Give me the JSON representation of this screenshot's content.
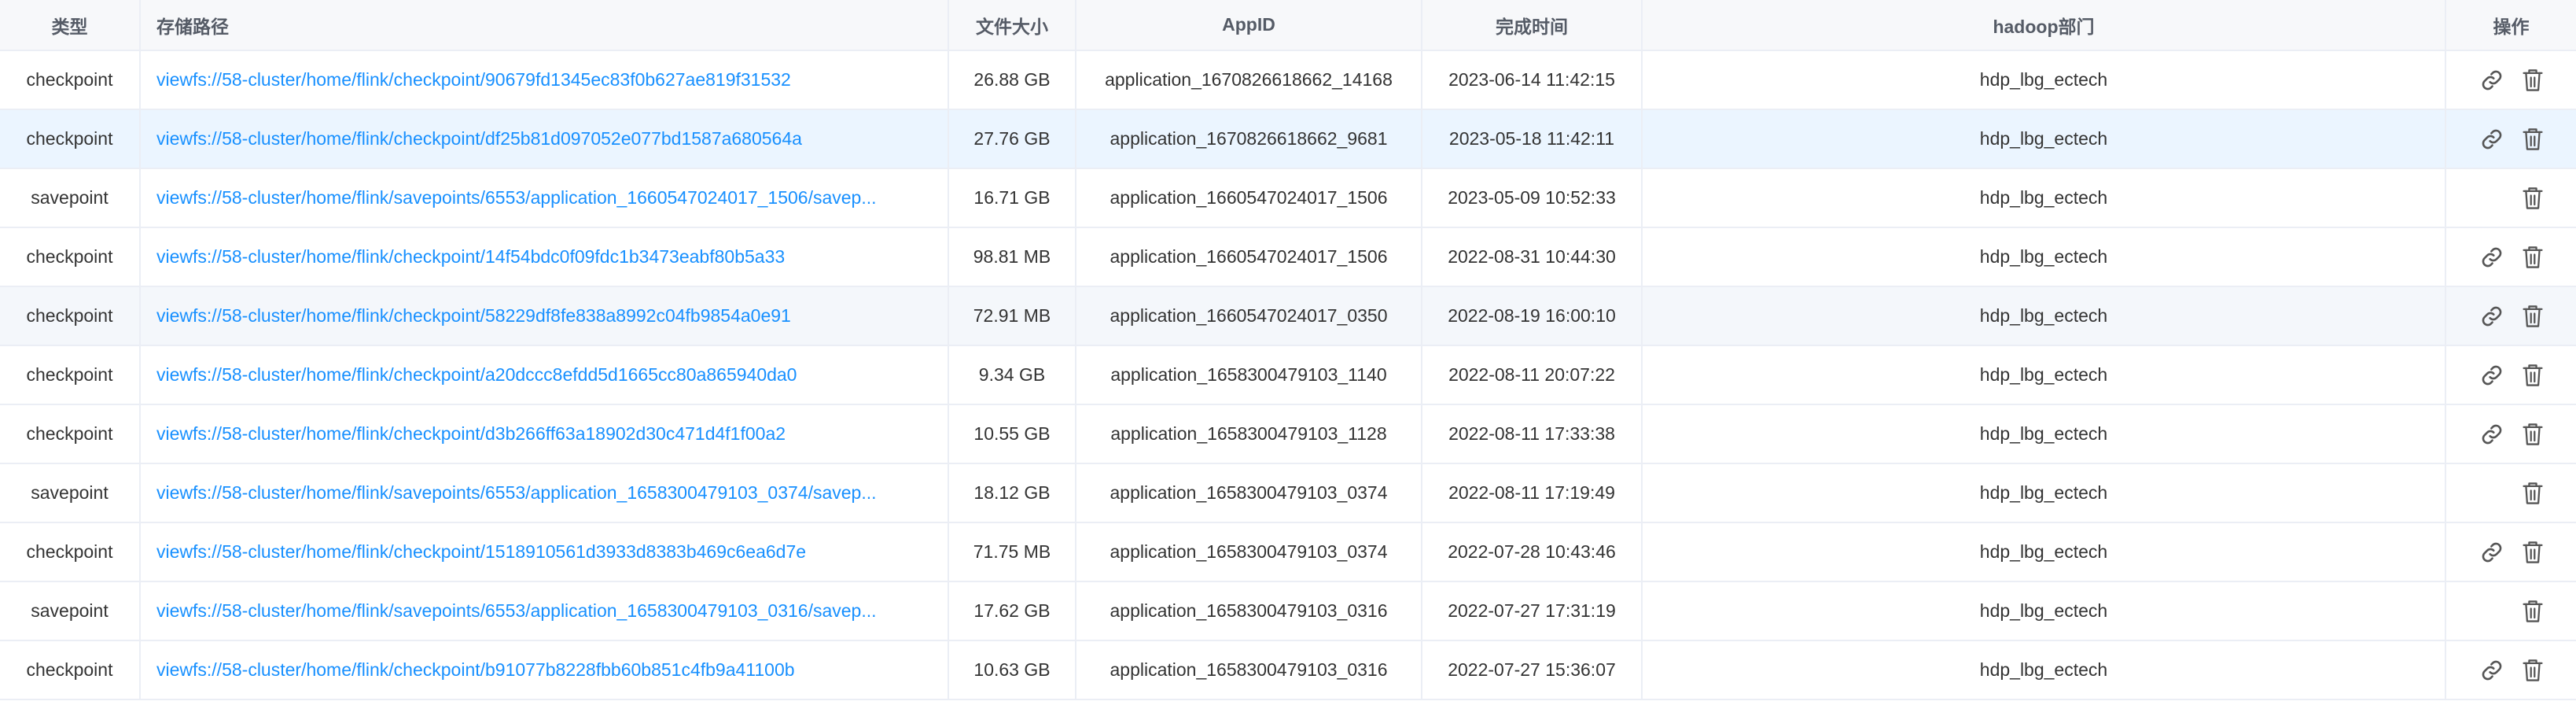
{
  "columns": {
    "type": "类型",
    "path": "存储路径",
    "size": "文件大小",
    "appid": "AppID",
    "time": "完成时间",
    "dept": "hadoop部门",
    "ops": "操作"
  },
  "icons": {
    "link": "link-icon",
    "delete": "trash-icon"
  },
  "colors": {
    "link_text": "#1890ff",
    "row_hover": "#ebf5ff",
    "row_alt": "#f4f7fb",
    "header_bg": "#f7f8fa"
  },
  "rows": [
    {
      "type": "checkpoint",
      "path": "viewfs://58-cluster/home/flink/checkpoint/90679fd1345ec83f0b627ae819f31532",
      "size": "26.88 GB",
      "appid": "application_1670826618662_14168",
      "time": "2023-06-14 11:42:15",
      "dept": "hdp_lbg_ectech",
      "has_link": true
    },
    {
      "type": "checkpoint",
      "path": "viewfs://58-cluster/home/flink/checkpoint/df25b81d097052e077bd1587a680564a",
      "size": "27.76 GB",
      "appid": "application_1670826618662_9681",
      "time": "2023-05-18 11:42:11",
      "dept": "hdp_lbg_ectech",
      "has_link": true
    },
    {
      "type": "savepoint",
      "path": "viewfs://58-cluster/home/flink/savepoints/6553/application_1660547024017_1506/savep...",
      "size": "16.71 GB",
      "appid": "application_1660547024017_1506",
      "time": "2023-05-09 10:52:33",
      "dept": "hdp_lbg_ectech",
      "has_link": false
    },
    {
      "type": "checkpoint",
      "path": "viewfs://58-cluster/home/flink/checkpoint/14f54bdc0f09fdc1b3473eabf80b5a33",
      "size": "98.81 MB",
      "appid": "application_1660547024017_1506",
      "time": "2022-08-31 10:44:30",
      "dept": "hdp_lbg_ectech",
      "has_link": true
    },
    {
      "type": "checkpoint",
      "path": "viewfs://58-cluster/home/flink/checkpoint/58229df8fe838a8992c04fb9854a0e91",
      "size": "72.91 MB",
      "appid": "application_1660547024017_0350",
      "time": "2022-08-19 16:00:10",
      "dept": "hdp_lbg_ectech",
      "has_link": true
    },
    {
      "type": "checkpoint",
      "path": "viewfs://58-cluster/home/flink/checkpoint/a20dccc8efdd5d1665cc80a865940da0",
      "size": "9.34 GB",
      "appid": "application_1658300479103_1140",
      "time": "2022-08-11 20:07:22",
      "dept": "hdp_lbg_ectech",
      "has_link": true
    },
    {
      "type": "checkpoint",
      "path": "viewfs://58-cluster/home/flink/checkpoint/d3b266ff63a18902d30c471d4f1f00a2",
      "size": "10.55 GB",
      "appid": "application_1658300479103_1128",
      "time": "2022-08-11 17:33:38",
      "dept": "hdp_lbg_ectech",
      "has_link": true
    },
    {
      "type": "savepoint",
      "path": "viewfs://58-cluster/home/flink/savepoints/6553/application_1658300479103_0374/savep...",
      "size": "18.12 GB",
      "appid": "application_1658300479103_0374",
      "time": "2022-08-11 17:19:49",
      "dept": "hdp_lbg_ectech",
      "has_link": false
    },
    {
      "type": "checkpoint",
      "path": "viewfs://58-cluster/home/flink/checkpoint/1518910561d3933d8383b469c6ea6d7e",
      "size": "71.75 MB",
      "appid": "application_1658300479103_0374",
      "time": "2022-07-28 10:43:46",
      "dept": "hdp_lbg_ectech",
      "has_link": true
    },
    {
      "type": "savepoint",
      "path": "viewfs://58-cluster/home/flink/savepoints/6553/application_1658300479103_0316/savep...",
      "size": "17.62 GB",
      "appid": "application_1658300479103_0316",
      "time": "2022-07-27 17:31:19",
      "dept": "hdp_lbg_ectech",
      "has_link": false
    },
    {
      "type": "checkpoint",
      "path": "viewfs://58-cluster/home/flink/checkpoint/b91077b8228fbb60b851c4fb9a41100b",
      "size": "10.63 GB",
      "appid": "application_1658300479103_0316",
      "time": "2022-07-27 15:36:07",
      "dept": "hdp_lbg_ectech",
      "has_link": true
    }
  ]
}
